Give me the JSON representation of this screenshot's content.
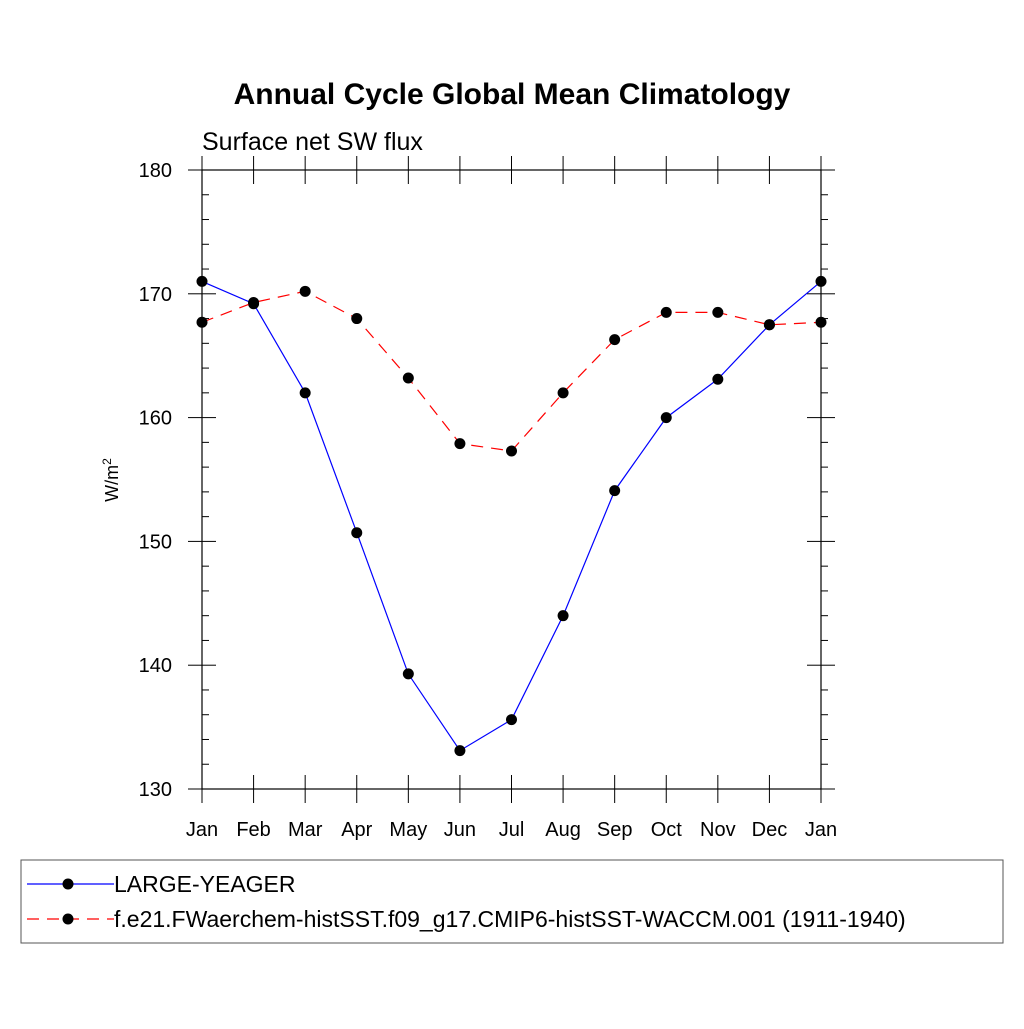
{
  "chart_data": {
    "type": "line",
    "title": "Annual Cycle Global Mean Climatology",
    "subtitle": "Surface net SW flux",
    "xlabel": "",
    "ylabel": "W/m",
    "ylabel_superscript": "2",
    "categories": [
      "Jan",
      "Feb",
      "Mar",
      "Apr",
      "May",
      "Jun",
      "Jul",
      "Aug",
      "Sep",
      "Oct",
      "Nov",
      "Dec",
      "Jan"
    ],
    "ylim": [
      130,
      180
    ],
    "yticks": [
      130,
      140,
      150,
      160,
      170,
      180
    ],
    "y_minor_step": 2,
    "grid": false,
    "legend_position": "bottom",
    "series": [
      {
        "name": "LARGE-YEAGER",
        "color": "#0000ff",
        "dash": "solid",
        "marker": "circle",
        "values": [
          171.0,
          169.2,
          162.0,
          150.7,
          139.3,
          133.1,
          135.6,
          144.0,
          154.1,
          160.0,
          163.1,
          167.5,
          171.0
        ]
      },
      {
        "name": "f.e21.FWaerchem-histSST.f09_g17.CMIP6-histSST-WACCM.001 (1911-1940)",
        "color": "#ff0000",
        "dash": "dashed",
        "marker": "circle",
        "values": [
          167.7,
          169.3,
          170.2,
          168.0,
          163.2,
          157.9,
          157.3,
          162.0,
          166.3,
          168.5,
          168.5,
          167.5,
          167.7
        ]
      }
    ]
  }
}
